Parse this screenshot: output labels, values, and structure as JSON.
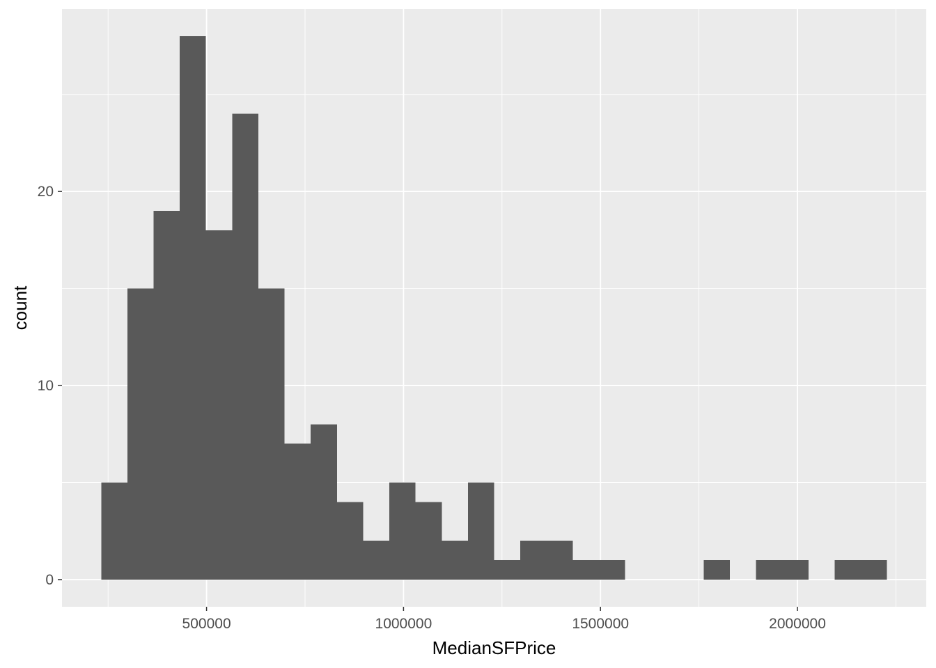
{
  "chart_data": {
    "type": "bar",
    "xlabel": "MedianSFPrice",
    "ylabel": "count",
    "bin_edges": [
      232500,
      299000,
      365500,
      432000,
      498500,
      565000,
      631500,
      698000,
      764500,
      831000,
      897500,
      964000,
      1030500,
      1097000,
      1163500,
      1230000,
      1296500,
      1363000,
      1429500,
      1496000,
      1562500,
      1629000,
      1695500,
      1762000,
      1828500,
      1895000,
      1961500,
      2028000,
      2094500,
      2161000,
      2227500
    ],
    "values": [
      5,
      15,
      19,
      28,
      18,
      24,
      15,
      7,
      8,
      4,
      2,
      5,
      4,
      2,
      5,
      1,
      2,
      2,
      1,
      1,
      0,
      0,
      0,
      1,
      0,
      1,
      1,
      0,
      1,
      1
    ],
    "xlim": [
      133000,
      2327000
    ],
    "ylim": [
      -1.4,
      29.4
    ],
    "x_ticks": [
      500000,
      1000000,
      1500000,
      2000000
    ],
    "x_tick_labels": [
      "500000",
      "1000000",
      "1500000",
      "2000000"
    ],
    "y_ticks": [
      0,
      10,
      20
    ],
    "y_tick_labels": [
      "0",
      "10",
      "20"
    ],
    "colors": {
      "panel_background": "#ebebeb",
      "grid_major": "#ffffff",
      "bar_fill": "#595959",
      "tick_mark": "#333333",
      "tick_label": "#4d4d4d"
    }
  }
}
